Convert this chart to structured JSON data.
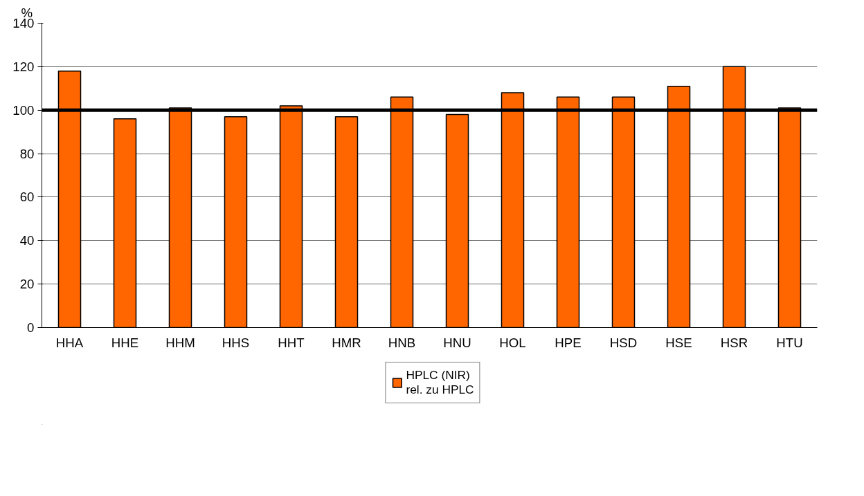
{
  "chart_data": {
    "type": "bar",
    "ylabel": "%",
    "categories": [
      "HHA",
      "HHE",
      "HHM",
      "HHS",
      "HHT",
      "HMR",
      "HNB",
      "HNU",
      "HOL",
      "HPE",
      "HSD",
      "HSE",
      "HSR",
      "HTU"
    ],
    "series": [
      {
        "name": "HPLC (NIR)\nrel. zu HPLC",
        "color": "#ff6600",
        "values": [
          118,
          96,
          101,
          97,
          102,
          97,
          106,
          98,
          108,
          106,
          106,
          111,
          120,
          101
        ]
      }
    ],
    "ylim": [
      0,
      140
    ],
    "yticks": [
      0,
      20,
      40,
      60,
      80,
      100,
      120,
      140
    ],
    "grid": "y",
    "legend": "bottom",
    "ref_lines": [
      {
        "axis": "y",
        "value": 100,
        "color": "#000000",
        "line_style": "solid"
      }
    ]
  }
}
